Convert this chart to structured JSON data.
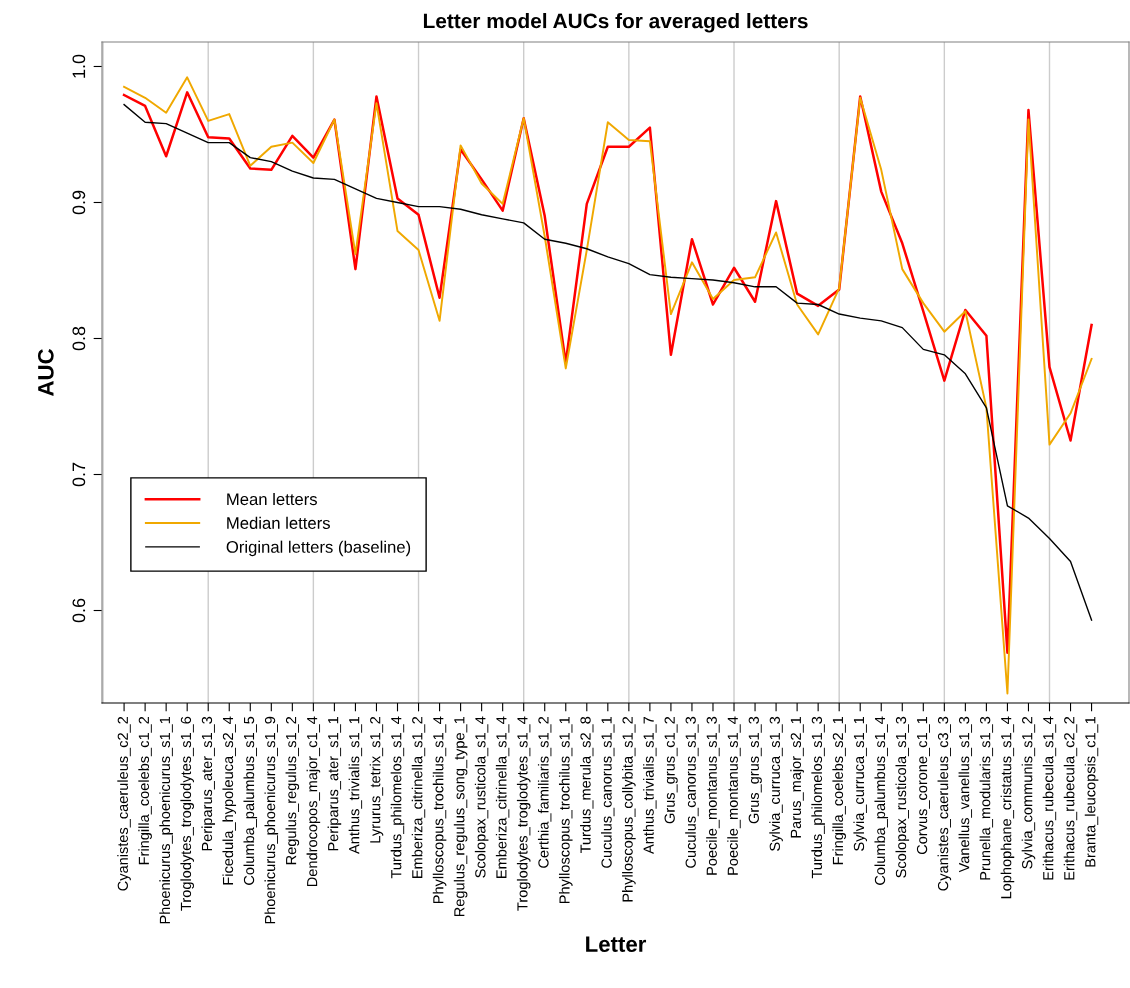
{
  "chart_data": {
    "type": "line",
    "title": "Letter model AUCs for averaged letters",
    "xlabel": "Letter",
    "ylabel": "AUC",
    "categories": [
      "Cyanistes_caeruleus_c2_2",
      "Fringilla_coelebs_c1_2",
      "Phoenicurus_phoenicurus_s1_1",
      "Troglodytes_troglodytes_s1_6",
      "Periparus_ater_s1_3",
      "Ficedula_hypoleuca_s2_4",
      "Columba_palumbus_s1_5",
      "Phoenicurus_phoenicurus_s1_9",
      "Regulus_regulus_s1_2",
      "Dendrocopos_major_c1_4",
      "Periparus_ater_s1_1",
      "Anthus_trivialis_s1_1",
      "Lyrurus_tetrix_s1_2",
      "Turdus_philomelos_s1_4",
      "Emberiza_citrinella_s1_2",
      "Phylloscopus_trochilus_s1_4",
      "Regulus_regulus_song_type_1",
      "Scolopax_rusticola_s1_4",
      "Emberiza_citrinella_s1_4",
      "Troglodytes_troglodytes_s1_4",
      "Certhia_familiaris_s1_2",
      "Phylloscopus_trochilus_s1_1",
      "Turdus_merula_s2_8",
      "Cuculus_canorus_s1_1",
      "Phylloscopus_collybita_s1_2",
      "Anthus_trivialis_s1_7",
      "Grus_grus_c1_2",
      "Cuculus_canorus_s1_3",
      "Poecile_montanus_s1_3",
      "Poecile_montanus_s1_4",
      "Grus_grus_s1_3",
      "Sylvia_curruca_s1_3",
      "Parus_major_s2_1",
      "Turdus_philomelos_s1_3",
      "Fringilla_coelebs_s2_1",
      "Sylvia_curruca_s1_1",
      "Columba_palumbus_s1_4",
      "Scolopax_rusticola_s1_3",
      "Corvus_corone_c1_1",
      "Cyanistes_caeruleus_c3_3",
      "Vanellus_vanellus_s1_3",
      "Prunella_modularis_s1_3",
      "Lophophane_cristatus_s1_4",
      "Sylvia_communis_s1_2",
      "Erithacus_rubecula_s1_4",
      "Erithacus_rubecula_c2_2",
      "Branta_leucopsis_c1_1"
    ],
    "series": [
      {
        "name": "Mean letters",
        "color": "#ff0000",
        "values": [
          0.979,
          0.971,
          0.934,
          0.981,
          0.948,
          0.947,
          0.925,
          0.924,
          0.949,
          0.933,
          0.961,
          0.851,
          0.978,
          0.903,
          0.891,
          0.83,
          0.939,
          0.917,
          0.894,
          0.962,
          0.89,
          0.782,
          0.899,
          0.941,
          0.941,
          0.955,
          0.788,
          0.873,
          0.825,
          0.852,
          0.827,
          0.901,
          0.833,
          0.824,
          0.836,
          0.978,
          0.908,
          0.87,
          0.82,
          0.769,
          0.821,
          0.802,
          0.569,
          0.968,
          0.779,
          0.725,
          0.81
        ]
      },
      {
        "name": "Median letters",
        "color": "#f0a800",
        "values": [
          0.985,
          0.977,
          0.966,
          0.992,
          0.96,
          0.965,
          0.927,
          0.941,
          0.944,
          0.929,
          0.961,
          0.862,
          0.973,
          0.879,
          0.865,
          0.813,
          0.942,
          0.914,
          0.899,
          0.962,
          0.875,
          0.778,
          0.865,
          0.959,
          0.946,
          0.945,
          0.818,
          0.856,
          0.829,
          0.843,
          0.845,
          0.878,
          0.825,
          0.803,
          0.837,
          0.977,
          0.924,
          0.851,
          0.826,
          0.805,
          0.82,
          0.749,
          0.539,
          0.961,
          0.722,
          0.745,
          0.785
        ]
      },
      {
        "name": "Original letters (baseline)",
        "color": "#000000",
        "values": [
          0.972,
          0.959,
          0.958,
          0.951,
          0.944,
          0.944,
          0.933,
          0.93,
          0.923,
          0.918,
          0.917,
          0.91,
          0.903,
          0.9,
          0.897,
          0.897,
          0.895,
          0.891,
          0.888,
          0.885,
          0.873,
          0.87,
          0.866,
          0.86,
          0.855,
          0.847,
          0.845,
          0.844,
          0.843,
          0.841,
          0.838,
          0.838,
          0.826,
          0.825,
          0.818,
          0.815,
          0.813,
          0.808,
          0.792,
          0.788,
          0.774,
          0.749,
          0.677,
          0.668,
          0.653,
          0.636,
          0.593
        ]
      }
    ],
    "ylim": [
      0.532,
      1.018
    ],
    "yticks": [
      {
        "value": 0.6,
        "label": "0.6"
      },
      {
        "value": 0.7,
        "label": "0.7"
      },
      {
        "value": 0.8,
        "label": "0.8"
      },
      {
        "value": 0.9,
        "label": "0.9"
      },
      {
        "value": 1.0,
        "label": "1.0"
      }
    ],
    "grid": "x",
    "legend": "left",
    "marker": "none",
    "line_style": "solid"
  }
}
